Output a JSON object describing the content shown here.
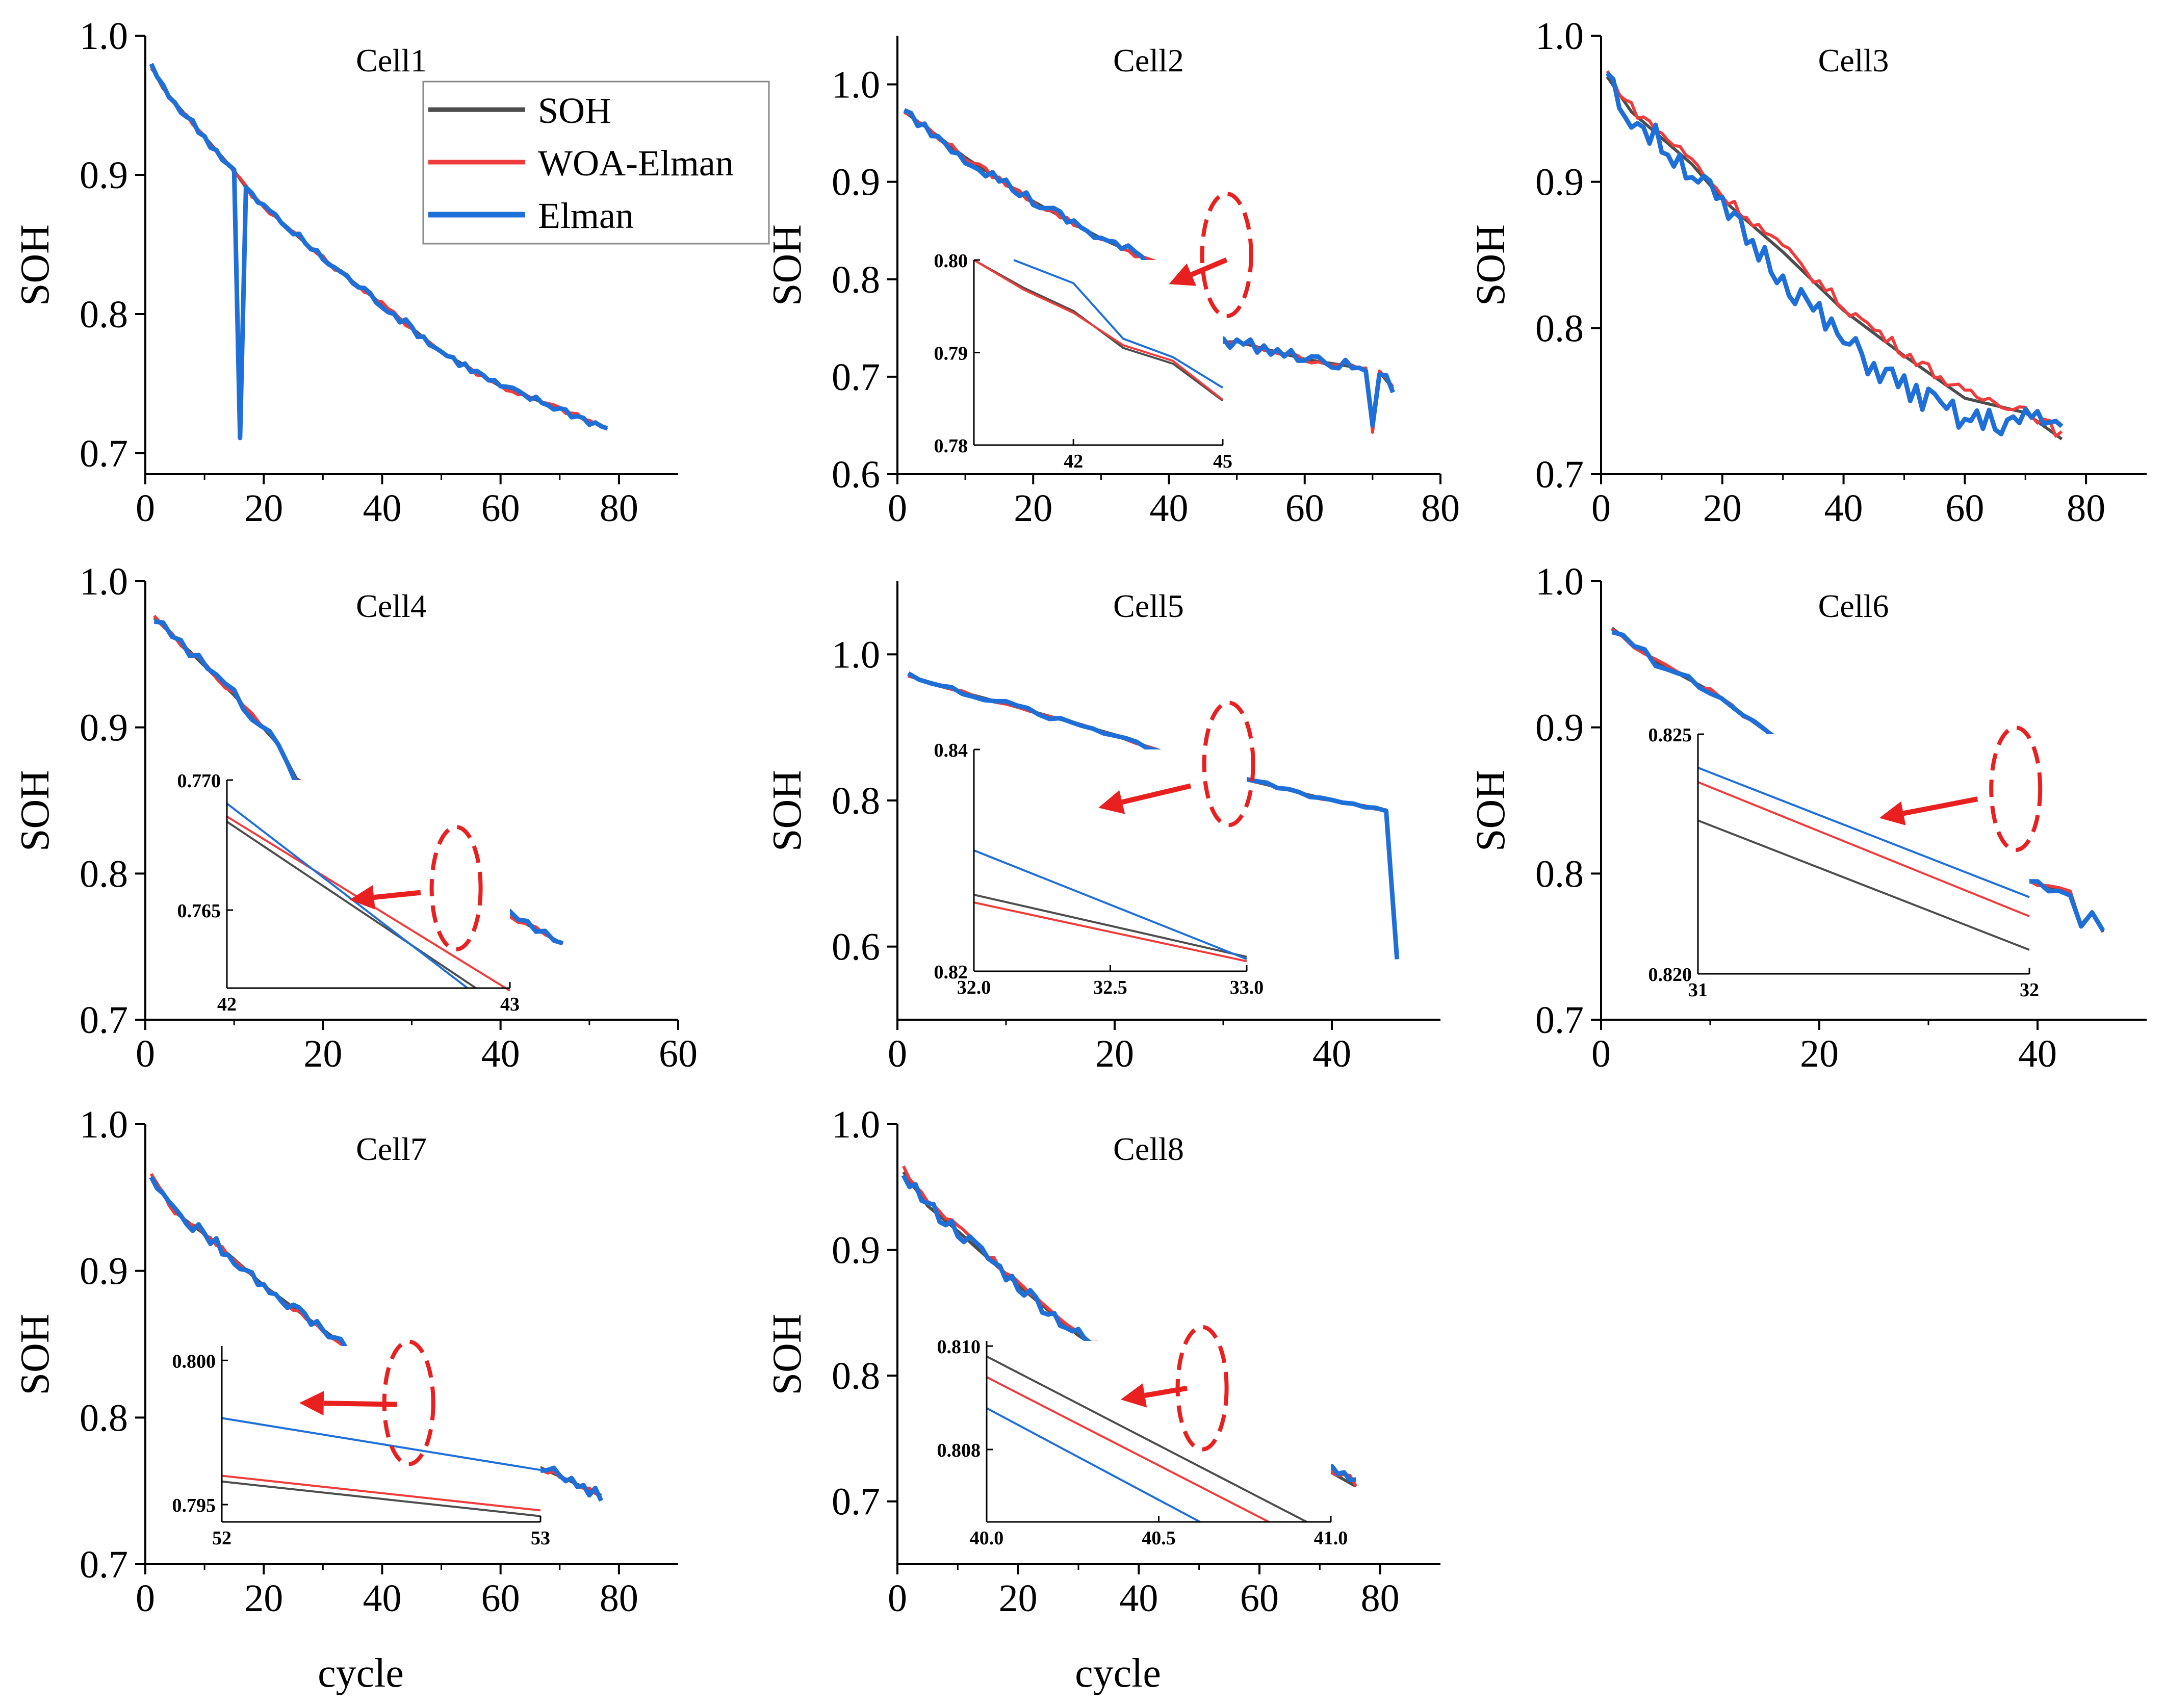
{
  "figure": {
    "legend": [
      {
        "label": "SOH",
        "color": "#4d4d4d"
      },
      {
        "label": "WOA-Elman",
        "color": "#ef3b3b"
      },
      {
        "label": "Elman",
        "color": "#1f6fd8"
      }
    ],
    "x_label": "cycle",
    "y_label": "SOH"
  },
  "chart_data": [
    {
      "type": "line",
      "title": "Cell1",
      "ylabel": "SOH",
      "xlabel": "",
      "xlim": [
        0,
        90
      ],
      "ylim": [
        0.685,
        1.0
      ],
      "xticks": [
        0,
        20,
        40,
        60,
        80
      ],
      "xtick_labels": [
        "0",
        "20",
        "40",
        "60",
        "80"
      ],
      "yticks": [
        0.7,
        0.8,
        0.9,
        1.0
      ],
      "ytick_labels": [
        "0.7",
        "0.8",
        "0.9",
        "1.0"
      ],
      "end": 78,
      "anchors": [
        [
          1,
          0.978
        ],
        [
          3,
          0.962
        ],
        [
          7,
          0.942
        ],
        [
          15,
          0.903
        ],
        [
          18,
          0.885
        ],
        [
          30,
          0.84
        ],
        [
          40,
          0.807
        ],
        [
          50,
          0.773
        ],
        [
          60,
          0.748
        ],
        [
          70,
          0.732
        ],
        [
          78,
          0.718
        ]
      ],
      "spikes": [
        {
          "x": 16,
          "y": 0.711
        }
      ],
      "noise": {
        "soh": 0.0,
        "woa": 0.002,
        "elman": 0.003
      },
      "legend": true
    },
    {
      "type": "line",
      "title": "Cell2",
      "ylabel": "SOH",
      "xlabel": "",
      "xlim": [
        0,
        80
      ],
      "ylim": [
        0.6,
        1.05
      ],
      "xticks": [
        0,
        20,
        40,
        60,
        80
      ],
      "xtick_labels": [
        "0",
        "20",
        "40",
        "60",
        "80"
      ],
      "yticks": [
        0.6,
        0.7,
        0.8,
        0.9,
        1.0
      ],
      "ytick_labels": [
        "0.6",
        "0.7",
        "0.8",
        "0.9",
        "1.0"
      ],
      "end": 73,
      "anchors": [
        [
          1,
          0.972
        ],
        [
          5,
          0.952
        ],
        [
          10,
          0.925
        ],
        [
          20,
          0.88
        ],
        [
          30,
          0.842
        ],
        [
          40,
          0.81
        ],
        [
          45,
          0.796
        ],
        [
          46,
          0.735
        ],
        [
          50,
          0.736
        ],
        [
          60,
          0.718
        ],
        [
          69,
          0.708
        ],
        [
          70,
          0.645
        ],
        [
          71,
          0.705
        ],
        [
          73,
          0.688
        ]
      ],
      "noise": {
        "soh": 0.0,
        "woa": 0.003,
        "elman": 0.006
      },
      "inset": {
        "xlim": [
          40,
          45
        ],
        "ylim": [
          0.78,
          0.8
        ],
        "xticks": [
          42,
          45
        ],
        "xtick_labels": [
          "42",
          "45"
        ],
        "yticks": [
          0.78,
          0.79,
          0.8
        ],
        "ytick_labels": [
          "0.78",
          "0.79",
          "0.80"
        ],
        "soh": [
          [
            40,
            0.8
          ],
          [
            41,
            0.797
          ],
          [
            42,
            0.7945
          ],
          [
            43,
            0.7905
          ],
          [
            44,
            0.7888
          ],
          [
            45,
            0.7848
          ]
        ],
        "woa": [
          [
            40,
            0.8
          ],
          [
            41,
            0.7968
          ],
          [
            42,
            0.7943
          ],
          [
            43,
            0.7908
          ],
          [
            44,
            0.7891
          ],
          [
            45,
            0.7849
          ]
        ],
        "elman": [
          [
            40.8,
            0.8
          ],
          [
            42,
            0.7975
          ],
          [
            43,
            0.7915
          ],
          [
            44,
            0.7895
          ],
          [
            45,
            0.7862
          ]
        ]
      },
      "ellipse": {
        "x": 48.5,
        "y": 0.825
      },
      "arrow": {
        "from": [
          48.5,
          0.82
        ],
        "to": [
          40,
          0.795
        ]
      }
    },
    {
      "type": "line",
      "title": "Cell3",
      "ylabel": "SOH",
      "xlabel": "",
      "xlim": [
        0,
        90
      ],
      "ylim": [
        0.7,
        1.0
      ],
      "xticks": [
        0,
        20,
        40,
        60,
        80
      ],
      "xtick_labels": [
        "0",
        "20",
        "40",
        "60",
        "80"
      ],
      "yticks": [
        0.7,
        0.8,
        0.9,
        1.0
      ],
      "ytick_labels": [
        "0.7",
        "0.8",
        "0.9",
        "1.0"
      ],
      "end": 76,
      "anchors": [
        [
          1,
          0.972
        ],
        [
          5,
          0.948
        ],
        [
          10,
          0.93
        ],
        [
          15,
          0.912
        ],
        [
          20,
          0.888
        ],
        [
          30,
          0.852
        ],
        [
          40,
          0.812
        ],
        [
          50,
          0.781
        ],
        [
          60,
          0.752
        ],
        [
          70,
          0.742
        ],
        [
          76,
          0.724
        ]
      ],
      "offsets": {
        "woa": 0.003,
        "elman": -0.004
      },
      "dip": {
        "from": 17,
        "to": 72,
        "elman_extra": -0.018
      },
      "tail": {
        "from": 70,
        "elman_extra": 0.015
      },
      "noise": {
        "soh": 0.0,
        "woa": 0.004,
        "elman": 0.01
      }
    },
    {
      "type": "line",
      "title": "Cell4",
      "ylabel": "SOH",
      "xlabel": "",
      "xlim": [
        0,
        60
      ],
      "ylim": [
        0.7,
        1.0
      ],
      "xticks": [
        0,
        20,
        40,
        60
      ],
      "xtick_labels": [
        "0",
        "20",
        "40",
        "60"
      ],
      "yticks": [
        0.7,
        0.8,
        0.9,
        1.0
      ],
      "ytick_labels": [
        "0.7",
        "0.8",
        "0.9",
        "1.0"
      ],
      "end": 47,
      "anchors": [
        [
          1,
          0.975
        ],
        [
          5,
          0.952
        ],
        [
          10,
          0.922
        ],
        [
          15,
          0.888
        ],
        [
          17,
          0.865
        ],
        [
          25,
          0.835
        ],
        [
          30,
          0.808
        ],
        [
          35,
          0.788
        ],
        [
          40,
          0.775
        ],
        [
          47,
          0.752
        ]
      ],
      "noise": {
        "soh": 0.0,
        "woa": 0.002,
        "elman": 0.004
      },
      "inset": {
        "xlim": [
          42,
          43
        ],
        "ylim": [
          0.762,
          0.77
        ],
        "xticks": [
          42,
          43
        ],
        "xtick_labels": [
          "42",
          "43"
        ],
        "yticks": [
          0.765,
          0.77
        ],
        "ytick_labels": [
          "0.765",
          "0.770"
        ],
        "soh": [
          [
            42,
            0.7684
          ],
          [
            42.88,
            0.762
          ]
        ],
        "woa": [
          [
            42,
            0.7686
          ],
          [
            43,
            0.7619
          ]
        ],
        "elman": [
          [
            42,
            0.7691
          ],
          [
            42.85,
            0.762
          ]
        ]
      },
      "ellipse": {
        "x": 35,
        "y": 0.79
      },
      "arrow": {
        "from": [
          31,
          0.787
        ],
        "to": [
          23,
          0.782
        ]
      }
    },
    {
      "type": "line",
      "title": "Cell5",
      "ylabel": "SOH",
      "xlabel": "",
      "xlim": [
        0,
        50
      ],
      "ylim": [
        0.5,
        1.1
      ],
      "xticks": [
        0,
        20,
        40
      ],
      "xtick_labels": [
        "0",
        "20",
        "40"
      ],
      "yticks": [
        0.6,
        0.8,
        1.0
      ],
      "ytick_labels": [
        "0.6",
        "0.8",
        "1.0"
      ],
      "end": 46,
      "anchors": [
        [
          1,
          0.972
        ],
        [
          3,
          0.96
        ],
        [
          10,
          0.932
        ],
        [
          20,
          0.89
        ],
        [
          25,
          0.863
        ],
        [
          30,
          0.836
        ],
        [
          35,
          0.818
        ],
        [
          40,
          0.8
        ],
        [
          45,
          0.787
        ],
        [
          46,
          0.585
        ]
      ],
      "noise": {
        "soh": 0.0,
        "woa": 0.002,
        "elman": 0.004
      },
      "inset": {
        "xlim": [
          32,
          33
        ],
        "ylim": [
          0.82,
          0.84
        ],
        "xticks": [
          32,
          32.5,
          33
        ],
        "xtick_labels": [
          "32.0",
          "32.5",
          "33.0"
        ],
        "yticks": [
          0.82,
          0.84
        ],
        "ytick_labels": [
          "0.82",
          "0.84"
        ],
        "soh": [
          [
            32,
            0.8269
          ],
          [
            33,
            0.8213
          ]
        ],
        "woa": [
          [
            32,
            0.8262
          ],
          [
            33,
            0.8209
          ]
        ],
        "elman": [
          [
            32,
            0.8309
          ],
          [
            33,
            0.8211
          ]
        ]
      },
      "ellipse": {
        "x": 30.5,
        "y": 0.85
      },
      "arrow": {
        "from": [
          27,
          0.82
        ],
        "to": [
          18.5,
          0.79
        ]
      }
    },
    {
      "type": "line",
      "title": "Cell6",
      "ylabel": "SOH",
      "xlabel": "",
      "xlim": [
        0,
        50
      ],
      "ylim": [
        0.7,
        1.0
      ],
      "xticks": [
        0,
        20,
        40
      ],
      "xtick_labels": [
        "0",
        "20",
        "40"
      ],
      "yticks": [
        0.7,
        0.8,
        0.9,
        1.0
      ],
      "ytick_labels": [
        "0.7",
        "0.8",
        "0.9",
        "1.0"
      ],
      "end": 46,
      "anchors": [
        [
          1,
          0.968
        ],
        [
          5,
          0.945
        ],
        [
          10,
          0.925
        ],
        [
          15,
          0.898
        ],
        [
          20,
          0.868
        ],
        [
          25,
          0.844
        ],
        [
          30,
          0.824
        ],
        [
          35,
          0.808
        ],
        [
          40,
          0.793
        ],
        [
          43,
          0.787
        ],
        [
          44,
          0.765
        ],
        [
          45,
          0.774
        ],
        [
          46,
          0.76
        ]
      ],
      "noise": {
        "soh": 0.0,
        "woa": 0.002,
        "elman": 0.003
      },
      "inset": {
        "xlim": [
          31,
          32
        ],
        "ylim": [
          0.82,
          0.825
        ],
        "xticks": [
          31,
          32
        ],
        "xtick_labels": [
          "31",
          "32"
        ],
        "yticks": [
          0.82,
          0.825
        ],
        "ytick_labels": [
          "0.820",
          "0.825"
        ],
        "soh": [
          [
            31,
            0.8232
          ],
          [
            32,
            0.8205
          ]
        ],
        "woa": [
          [
            31,
            0.824
          ],
          [
            32,
            0.8212
          ]
        ],
        "elman": [
          [
            31,
            0.8243
          ],
          [
            32,
            0.8216
          ]
        ]
      },
      "ellipse": {
        "x": 38,
        "y": 0.858
      },
      "arrow": {
        "from": [
          34.5,
          0.851
        ],
        "to": [
          25.5,
          0.838
        ]
      }
    },
    {
      "type": "line",
      "title": "Cell7",
      "ylabel": "SOH",
      "xlabel": "cycle",
      "xlim": [
        0,
        90
      ],
      "ylim": [
        0.7,
        1.0
      ],
      "xticks": [
        0,
        20,
        40,
        60,
        80
      ],
      "xtick_labels": [
        "0",
        "20",
        "40",
        "60",
        "80"
      ],
      "yticks": [
        0.7,
        0.8,
        0.9,
        1.0
      ],
      "ytick_labels": [
        "0.7",
        "0.8",
        "0.9",
        "1.0"
      ],
      "end": 77,
      "anchors": [
        [
          1,
          0.966
        ],
        [
          5,
          0.94
        ],
        [
          10,
          0.925
        ],
        [
          15,
          0.908
        ],
        [
          20,
          0.89
        ],
        [
          30,
          0.86
        ],
        [
          35,
          0.845
        ],
        [
          36,
          0.833
        ],
        [
          38,
          0.84
        ],
        [
          45,
          0.818
        ],
        [
          50,
          0.798
        ],
        [
          60,
          0.778
        ],
        [
          70,
          0.76
        ],
        [
          77,
          0.747
        ]
      ],
      "noise": {
        "soh": 0.0,
        "woa": 0.002,
        "elman": 0.004
      },
      "inset": {
        "xlim": [
          52,
          53
        ],
        "ylim": [
          0.7944,
          0.8005
        ],
        "xticks": [
          52,
          53
        ],
        "xtick_labels": [
          "52",
          "53"
        ],
        "yticks": [
          0.795,
          0.8
        ],
        "ytick_labels": [
          "0.795",
          "0.800"
        ],
        "soh": [
          [
            52,
            0.7958
          ],
          [
            53,
            0.7946
          ]
        ],
        "woa": [
          [
            52,
            0.796
          ],
          [
            53,
            0.7948
          ]
        ],
        "elman": [
          [
            52,
            0.798
          ],
          [
            53,
            0.7962
          ]
        ]
      },
      "ellipse": {
        "x": 44.5,
        "y": 0.81
      },
      "arrow": {
        "from": [
          42.5,
          0.809
        ],
        "to": [
          26,
          0.81
        ]
      }
    },
    {
      "type": "line",
      "title": "Cell8",
      "ylabel": "SOH",
      "xlabel": "cycle",
      "xlim": [
        0,
        90
      ],
      "ylim": [
        0.65,
        1.0
      ],
      "xticks": [
        0,
        20,
        40,
        60,
        80
      ],
      "xtick_labels": [
        "0",
        "20",
        "40",
        "60",
        "80"
      ],
      "yticks": [
        0.7,
        0.8,
        0.9,
        1.0
      ],
      "ytick_labels": [
        "0.7",
        "0.8",
        "0.9",
        "1.0"
      ],
      "end": 76,
      "anchors": [
        [
          1,
          0.962
        ],
        [
          5,
          0.935
        ],
        [
          10,
          0.915
        ],
        [
          20,
          0.872
        ],
        [
          30,
          0.832
        ],
        [
          40,
          0.8
        ],
        [
          50,
          0.772
        ],
        [
          60,
          0.745
        ],
        [
          70,
          0.728
        ],
        [
          76,
          0.712
        ]
      ],
      "offsets": {
        "woa": 0.003
      },
      "noise": {
        "soh": 0.0,
        "woa": 0.003,
        "elman": 0.006
      },
      "inset": {
        "xlim": [
          40,
          41
        ],
        "ylim": [
          0.8066,
          0.8101
        ],
        "xticks": [
          40,
          40.5,
          41
        ],
        "xtick_labels": [
          "40.0",
          "40.5",
          "41.0"
        ],
        "yticks": [
          0.808,
          0.81
        ],
        "ytick_labels": [
          "0.808",
          "0.810"
        ],
        "soh": [
          [
            40,
            0.8098
          ],
          [
            40.93,
            0.8066
          ]
        ],
        "woa": [
          [
            40,
            0.8094
          ],
          [
            40.82,
            0.8066
          ]
        ],
        "elman": [
          [
            40,
            0.8088
          ],
          [
            40.62,
            0.8066
          ]
        ]
      },
      "ellipse": {
        "x": 50.5,
        "y": 0.79
      },
      "arrow": {
        "from": [
          48,
          0.79
        ],
        "to": [
          37,
          0.781
        ]
      }
    }
  ]
}
